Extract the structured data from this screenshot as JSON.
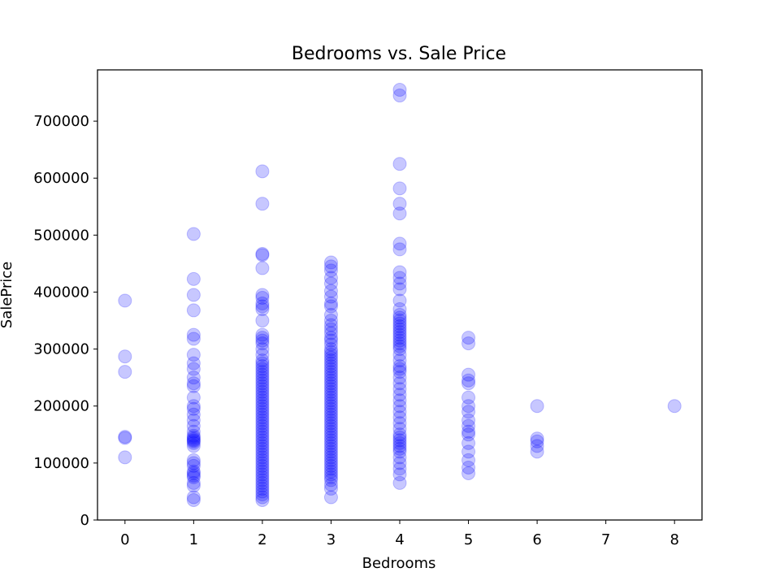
{
  "chart_data": {
    "type": "scatter",
    "title": "Bedrooms vs. Sale Price",
    "xlabel": "Bedrooms",
    "ylabel": "SalePrice",
    "xlim": [
      -0.4,
      8.4
    ],
    "ylim": [
      0,
      790000
    ],
    "xticks": [
      0,
      1,
      2,
      3,
      4,
      5,
      6,
      7,
      8
    ],
    "xtick_labels": [
      "0",
      "1",
      "2",
      "3",
      "4",
      "5",
      "6",
      "7",
      "8"
    ],
    "yticks": [
      0,
      100000,
      200000,
      300000,
      400000,
      500000,
      600000,
      700000
    ],
    "ytick_labels": [
      "0",
      "100000",
      "200000",
      "300000",
      "400000",
      "500000",
      "600000",
      "700000"
    ],
    "grid": false,
    "marker_color": "#0000ff",
    "marker_alpha": 0.22,
    "points": {
      "0": [
        385000,
        287000,
        260000,
        146000,
        144000,
        110000
      ],
      "1": [
        502000,
        423000,
        395000,
        368000,
        325000,
        318000,
        290000,
        275000,
        265000,
        250000,
        240000,
        235000,
        215000,
        200000,
        195000,
        185000,
        175000,
        165000,
        155000,
        148000,
        145000,
        142000,
        140000,
        138000,
        135000,
        130000,
        105000,
        100000,
        95000,
        85000,
        82000,
        78000,
        75000,
        65000,
        60000,
        40000,
        35000
      ],
      "2": [
        612000,
        555000,
        467000,
        465000,
        442000,
        395000,
        390000,
        380000,
        375000,
        370000,
        350000,
        325000,
        320000,
        315000,
        310000,
        300000,
        290000,
        280000,
        275000,
        270000,
        265000,
        260000,
        255000,
        250000,
        245000,
        240000,
        235000,
        230000,
        225000,
        220000,
        215000,
        210000,
        205000,
        200000,
        195000,
        190000,
        185000,
        180000,
        175000,
        170000,
        165000,
        160000,
        155000,
        150000,
        145000,
        140000,
        135000,
        130000,
        125000,
        120000,
        115000,
        110000,
        105000,
        100000,
        95000,
        90000,
        85000,
        80000,
        75000,
        70000,
        65000,
        60000,
        55000,
        50000,
        45000,
        40000,
        35000
      ],
      "3": [
        452000,
        445000,
        438000,
        425000,
        415000,
        402000,
        392000,
        380000,
        375000,
        360000,
        350000,
        342000,
        335000,
        328000,
        320000,
        315000,
        308000,
        300000,
        295000,
        290000,
        285000,
        280000,
        275000,
        270000,
        265000,
        260000,
        255000,
        250000,
        245000,
        240000,
        235000,
        230000,
        225000,
        220000,
        215000,
        210000,
        205000,
        200000,
        195000,
        190000,
        185000,
        180000,
        175000,
        170000,
        165000,
        160000,
        155000,
        150000,
        145000,
        140000,
        135000,
        130000,
        125000,
        120000,
        115000,
        110000,
        105000,
        100000,
        95000,
        90000,
        85000,
        80000,
        75000,
        70000,
        62000,
        55000,
        40000
      ],
      "4": [
        755000,
        745000,
        625000,
        582000,
        555000,
        538000,
        485000,
        475000,
        435000,
        425000,
        415000,
        405000,
        385000,
        370000,
        360000,
        355000,
        350000,
        345000,
        340000,
        335000,
        330000,
        325000,
        320000,
        315000,
        310000,
        305000,
        300000,
        290000,
        280000,
        270000,
        265000,
        260000,
        250000,
        240000,
        230000,
        220000,
        210000,
        200000,
        190000,
        180000,
        170000,
        160000,
        150000,
        145000,
        140000,
        135000,
        130000,
        125000,
        120000,
        110000,
        100000,
        90000,
        80000,
        65000
      ],
      "5": [
        320000,
        310000,
        255000,
        245000,
        240000,
        215000,
        200000,
        190000,
        175000,
        165000,
        155000,
        150000,
        135000,
        120000,
        105000,
        92000,
        82000
      ],
      "6": [
        200000,
        143000,
        138000,
        130000,
        120000
      ],
      "8": [
        200000
      ]
    }
  }
}
